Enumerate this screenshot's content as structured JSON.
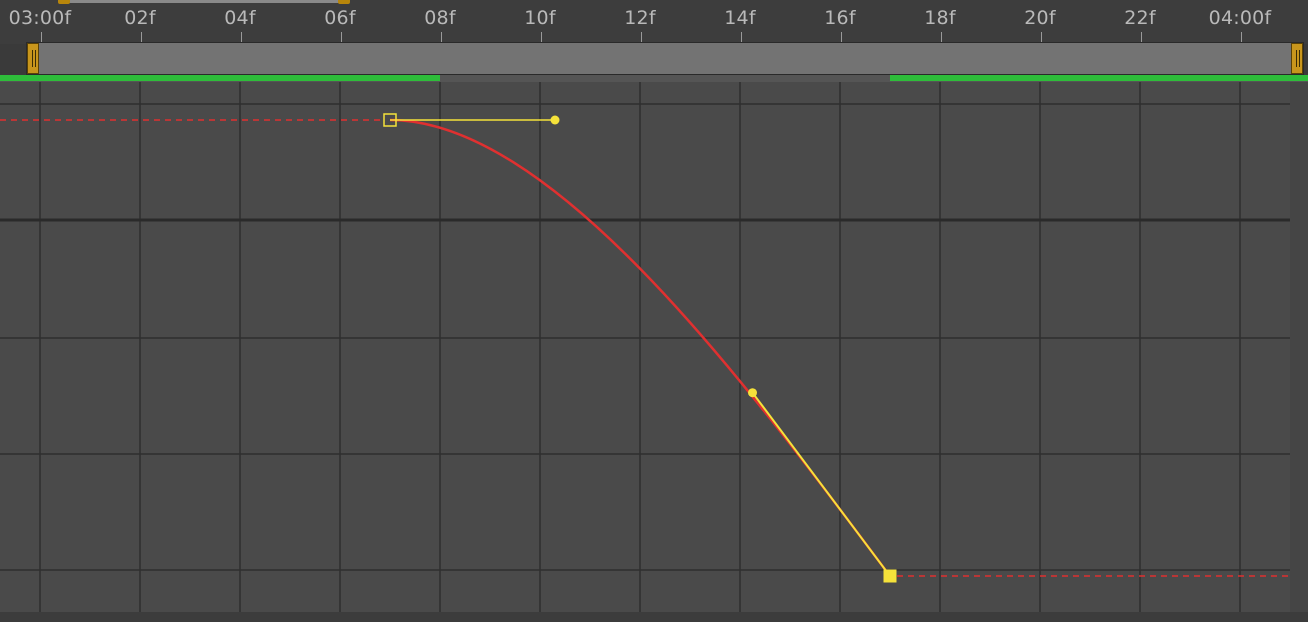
{
  "ruler": {
    "ticks": [
      "03:00f",
      "02f",
      "04f",
      "06f",
      "08f",
      "10f",
      "12f",
      "14f",
      "16f",
      "18f",
      "20f",
      "22f",
      "04:00f"
    ]
  },
  "colors": {
    "background": "#4a4a4a",
    "ruler_bg": "#3d3d3d",
    "grid_line": "#2e2e2e",
    "grid_major": "#2a2a2a",
    "curve": "#e03030",
    "handle": "#f5e23a",
    "extrapolation": "#e03030",
    "cache_green": "#2ebd3a",
    "nav_handle": "#c8961c"
  },
  "cache": {
    "segments": [
      "cached",
      "uncached",
      "cached"
    ]
  },
  "graph": {
    "keyframes": [
      {
        "name": "keyframe-start",
        "frame": 7,
        "value": 1.0,
        "style": "hollow"
      },
      {
        "name": "keyframe-end",
        "frame": 17,
        "value": 0.0,
        "style": "filled"
      }
    ],
    "out_handle": {
      "frame": 10.3,
      "value": 1.0
    },
    "in_handle": {
      "frame": 14.25,
      "value": 0.402
    }
  },
  "icons": {
    "nav_start": "nav-handle-grip-icon",
    "nav_end": "nav-handle-grip-icon"
  }
}
